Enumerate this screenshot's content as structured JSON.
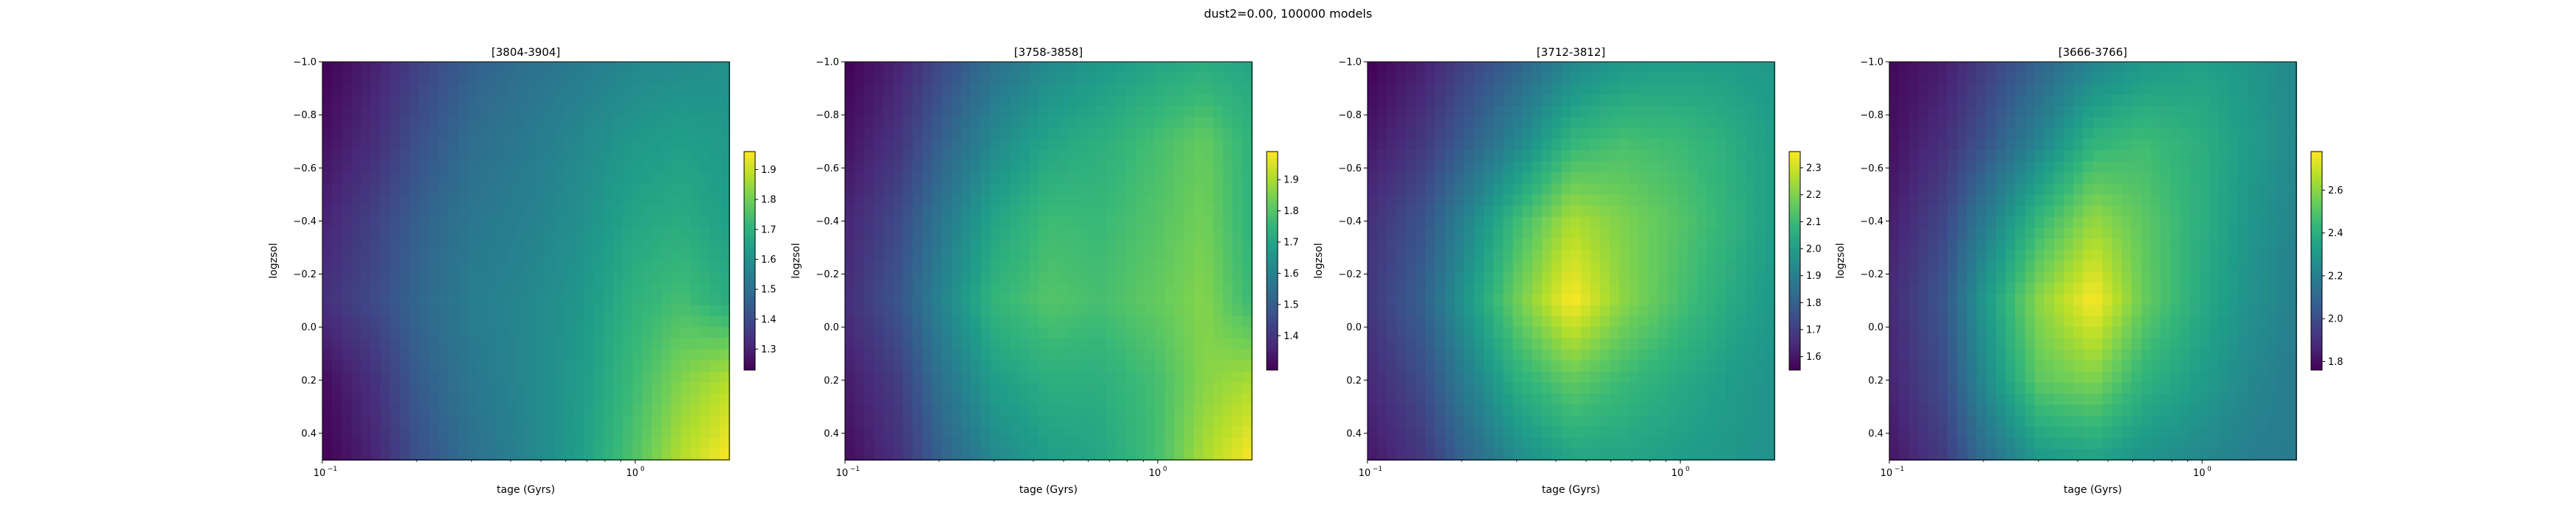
{
  "figure": {
    "suptitle": "dust2=0.00, 100000 models"
  },
  "colors": {
    "viridis": [
      "#440154",
      "#482878",
      "#3e4989",
      "#31688e",
      "#26828e",
      "#1f9e89",
      "#35b779",
      "#6ece58",
      "#b5de2b",
      "#fde725"
    ]
  },
  "chart_data": [
    {
      "type": "heatmap",
      "title": "[3804-3904]",
      "xlabel": "tage (Gyrs)",
      "ylabel": "logzsol",
      "xscale": "log",
      "xlim": [
        0.1,
        2.0
      ],
      "ylim": [
        0.5,
        -1.0
      ],
      "x_ticks": [
        0.1,
        1.0
      ],
      "x_tick_labels": [
        "10",
        "10"
      ],
      "x_tick_exponents": [
        "−1",
        "0"
      ],
      "y_ticks": [
        -1.0,
        -0.8,
        -0.6,
        -0.4,
        -0.2,
        0.0,
        0.2,
        0.4
      ],
      "y_tick_labels": [
        "−1.0",
        "−0.8",
        "−0.6",
        "−0.4",
        "−0.2",
        "0.0",
        "0.2",
        "0.4"
      ],
      "colormap": "viridis",
      "colorbar": {
        "min": 1.23,
        "max": 1.96,
        "ticks": [
          1.3,
          1.4,
          1.5,
          1.6,
          1.7,
          1.8,
          1.9
        ],
        "tick_labels": [
          "1.3",
          "1.4",
          "1.5",
          "1.6",
          "1.7",
          "1.8",
          "1.9"
        ]
      },
      "x_samples": [
        0.1,
        0.15,
        0.2,
        0.3,
        0.45,
        0.65,
        1.0,
        1.4,
        2.0
      ],
      "y_samples": [
        -1.0,
        -0.7,
        -0.4,
        -0.1,
        0.2,
        0.5
      ],
      "values": [
        [
          1.23,
          1.3,
          1.37,
          1.45,
          1.5,
          1.53,
          1.57,
          1.58,
          1.6
        ],
        [
          1.26,
          1.33,
          1.41,
          1.49,
          1.53,
          1.57,
          1.62,
          1.64,
          1.62
        ],
        [
          1.3,
          1.38,
          1.45,
          1.52,
          1.55,
          1.59,
          1.66,
          1.68,
          1.64
        ],
        [
          1.33,
          1.4,
          1.47,
          1.54,
          1.57,
          1.61,
          1.7,
          1.74,
          1.68
        ],
        [
          1.25,
          1.34,
          1.44,
          1.52,
          1.57,
          1.62,
          1.73,
          1.82,
          1.88
        ],
        [
          1.23,
          1.31,
          1.41,
          1.5,
          1.56,
          1.63,
          1.76,
          1.88,
          1.96
        ]
      ]
    },
    {
      "type": "heatmap",
      "title": "[3758-3858]",
      "xlabel": "tage (Gyrs)",
      "ylabel": "logzsol",
      "xscale": "log",
      "xlim": [
        0.1,
        2.0
      ],
      "ylim": [
        0.5,
        -1.0
      ],
      "x_ticks": [
        0.1,
        1.0
      ],
      "x_tick_labels": [
        "10",
        "10"
      ],
      "x_tick_exponents": [
        "−1",
        "0"
      ],
      "y_ticks": [
        -1.0,
        -0.8,
        -0.6,
        -0.4,
        -0.2,
        0.0,
        0.2,
        0.4
      ],
      "y_tick_labels": [
        "−1.0",
        "−0.8",
        "−0.6",
        "−0.4",
        "−0.2",
        "0.0",
        "0.2",
        "0.4"
      ],
      "colormap": "viridis",
      "colorbar": {
        "min": 1.29,
        "max": 1.99,
        "ticks": [
          1.4,
          1.5,
          1.6,
          1.7,
          1.8,
          1.9
        ],
        "tick_labels": [
          "1.4",
          "1.5",
          "1.6",
          "1.7",
          "1.8",
          "1.9"
        ]
      },
      "x_samples": [
        0.1,
        0.15,
        0.2,
        0.3,
        0.45,
        0.65,
        1.0,
        1.4,
        2.0
      ],
      "y_samples": [
        -1.0,
        -0.7,
        -0.4,
        -0.1,
        0.2,
        0.5
      ],
      "values": [
        [
          1.29,
          1.36,
          1.44,
          1.55,
          1.62,
          1.66,
          1.7,
          1.72,
          1.7
        ],
        [
          1.32,
          1.4,
          1.5,
          1.62,
          1.7,
          1.73,
          1.78,
          1.82,
          1.74
        ],
        [
          1.36,
          1.45,
          1.56,
          1.7,
          1.77,
          1.76,
          1.8,
          1.84,
          1.74
        ],
        [
          1.38,
          1.48,
          1.6,
          1.75,
          1.8,
          1.78,
          1.82,
          1.86,
          1.76
        ],
        [
          1.34,
          1.42,
          1.55,
          1.68,
          1.73,
          1.73,
          1.78,
          1.86,
          1.9
        ],
        [
          1.31,
          1.39,
          1.5,
          1.62,
          1.68,
          1.7,
          1.78,
          1.9,
          1.99
        ]
      ]
    },
    {
      "type": "heatmap",
      "title": "[3712-3812]",
      "xlabel": "tage (Gyrs)",
      "ylabel": "logzsol",
      "xscale": "log",
      "xlim": [
        0.1,
        2.0
      ],
      "ylim": [
        0.5,
        -1.0
      ],
      "x_ticks": [
        0.1,
        1.0
      ],
      "x_tick_labels": [
        "10",
        "10"
      ],
      "x_tick_exponents": [
        "−1",
        "0"
      ],
      "y_ticks": [
        -1.0,
        -0.8,
        -0.6,
        -0.4,
        -0.2,
        0.0,
        0.2,
        0.4
      ],
      "y_tick_labels": [
        "−1.0",
        "−0.8",
        "−0.6",
        "−0.4",
        "−0.2",
        "0.0",
        "0.2",
        "0.4"
      ],
      "colormap": "viridis",
      "colorbar": {
        "min": 1.55,
        "max": 2.36,
        "ticks": [
          1.6,
          1.7,
          1.8,
          1.9,
          2.0,
          2.1,
          2.2,
          2.3
        ],
        "tick_labels": [
          "1.6",
          "1.7",
          "1.8",
          "1.9",
          "2.0",
          "2.1",
          "2.2",
          "2.3"
        ]
      },
      "x_samples": [
        0.1,
        0.15,
        0.2,
        0.3,
        0.45,
        0.65,
        1.0,
        1.4,
        2.0
      ],
      "y_samples": [
        -1.0,
        -0.7,
        -0.4,
        -0.1,
        0.2,
        0.5
      ],
      "values": [
        [
          1.55,
          1.62,
          1.7,
          1.8,
          1.92,
          1.98,
          2.0,
          2.0,
          1.98
        ],
        [
          1.6,
          1.68,
          1.78,
          1.92,
          2.08,
          2.12,
          2.1,
          2.06,
          2.0
        ],
        [
          1.66,
          1.76,
          1.9,
          2.1,
          2.26,
          2.2,
          2.14,
          2.08,
          2.0
        ],
        [
          1.68,
          1.8,
          1.96,
          2.18,
          2.36,
          2.22,
          2.12,
          2.05,
          1.98
        ],
        [
          1.64,
          1.74,
          1.88,
          2.06,
          2.16,
          2.1,
          2.04,
          2.0,
          1.96
        ],
        [
          1.6,
          1.68,
          1.8,
          1.94,
          2.02,
          2.02,
          2.0,
          1.98,
          1.96
        ]
      ]
    },
    {
      "type": "heatmap",
      "title": "[3666-3766]",
      "xlabel": "tage (Gyrs)",
      "ylabel": "logzsol",
      "xscale": "log",
      "xlim": [
        0.1,
        2.0
      ],
      "ylim": [
        0.5,
        -1.0
      ],
      "x_ticks": [
        0.1,
        1.0
      ],
      "x_tick_labels": [
        "10",
        "10"
      ],
      "x_tick_exponents": [
        "−1",
        "0"
      ],
      "y_ticks": [
        -1.0,
        -0.8,
        -0.6,
        -0.4,
        -0.2,
        0.0,
        0.2,
        0.4
      ],
      "y_tick_labels": [
        "−1.0",
        "−0.8",
        "−0.6",
        "−0.4",
        "−0.2",
        "0.0",
        "0.2",
        "0.4"
      ],
      "colormap": "viridis",
      "colorbar": {
        "min": 1.76,
        "max": 2.78,
        "ticks": [
          1.8,
          2.0,
          2.2,
          2.4,
          2.6
        ],
        "tick_labels": [
          "1.8",
          "2.0",
          "2.2",
          "2.4",
          "2.6"
        ]
      },
      "x_samples": [
        0.1,
        0.15,
        0.2,
        0.3,
        0.45,
        0.65,
        1.0,
        1.4,
        2.0
      ],
      "y_samples": [
        -1.0,
        -0.7,
        -0.4,
        -0.1,
        0.2,
        0.5
      ],
      "values": [
        [
          1.78,
          1.84,
          1.94,
          2.08,
          2.22,
          2.3,
          2.34,
          2.3,
          2.24
        ],
        [
          1.8,
          1.9,
          2.02,
          2.22,
          2.42,
          2.46,
          2.4,
          2.32,
          2.24
        ],
        [
          1.84,
          1.98,
          2.18,
          2.44,
          2.62,
          2.52,
          2.4,
          2.3,
          2.22
        ],
        [
          1.88,
          2.04,
          2.3,
          2.6,
          2.78,
          2.54,
          2.38,
          2.28,
          2.2
        ],
        [
          1.86,
          2.0,
          2.24,
          2.52,
          2.58,
          2.42,
          2.32,
          2.24,
          2.18
        ],
        [
          1.82,
          1.94,
          2.12,
          2.3,
          2.34,
          2.28,
          2.24,
          2.2,
          2.18
        ]
      ]
    }
  ]
}
